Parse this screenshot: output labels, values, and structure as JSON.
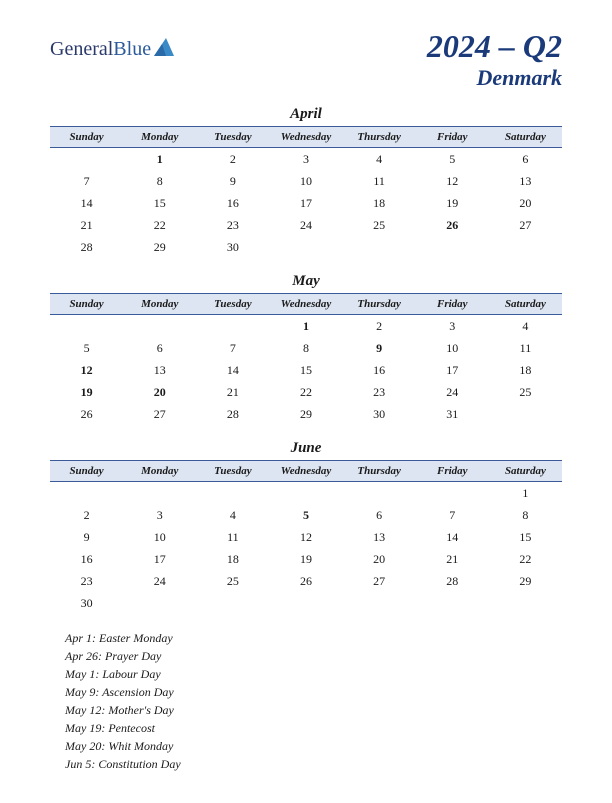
{
  "logo": {
    "general": "General",
    "blue": "Blue"
  },
  "title": {
    "main": "2024 – Q2",
    "country": "Denmark"
  },
  "days": [
    "Sunday",
    "Monday",
    "Tuesday",
    "Wednesday",
    "Thursday",
    "Friday",
    "Saturday"
  ],
  "colors": {
    "title": "#1a3a7a",
    "header_bg": "#dde5f2",
    "header_border": "#3a5a9a",
    "holiday": "#c02020",
    "text": "#1a1a1a",
    "logo_shape": "#3a8ac8"
  },
  "months": [
    {
      "name": "April",
      "weeks": [
        [
          {
            "d": ""
          },
          {
            "d": "1",
            "h": true
          },
          {
            "d": "2"
          },
          {
            "d": "3"
          },
          {
            "d": "4"
          },
          {
            "d": "5"
          },
          {
            "d": "6"
          }
        ],
        [
          {
            "d": "7"
          },
          {
            "d": "8"
          },
          {
            "d": "9"
          },
          {
            "d": "10"
          },
          {
            "d": "11"
          },
          {
            "d": "12"
          },
          {
            "d": "13"
          }
        ],
        [
          {
            "d": "14"
          },
          {
            "d": "15"
          },
          {
            "d": "16"
          },
          {
            "d": "17"
          },
          {
            "d": "18"
          },
          {
            "d": "19"
          },
          {
            "d": "20"
          }
        ],
        [
          {
            "d": "21"
          },
          {
            "d": "22"
          },
          {
            "d": "23"
          },
          {
            "d": "24"
          },
          {
            "d": "25"
          },
          {
            "d": "26",
            "h": true
          },
          {
            "d": "27"
          }
        ],
        [
          {
            "d": "28"
          },
          {
            "d": "29"
          },
          {
            "d": "30"
          },
          {
            "d": ""
          },
          {
            "d": ""
          },
          {
            "d": ""
          },
          {
            "d": ""
          }
        ]
      ]
    },
    {
      "name": "May",
      "weeks": [
        [
          {
            "d": ""
          },
          {
            "d": ""
          },
          {
            "d": ""
          },
          {
            "d": "1",
            "h": true
          },
          {
            "d": "2"
          },
          {
            "d": "3"
          },
          {
            "d": "4"
          }
        ],
        [
          {
            "d": "5"
          },
          {
            "d": "6"
          },
          {
            "d": "7"
          },
          {
            "d": "8"
          },
          {
            "d": "9",
            "h": true
          },
          {
            "d": "10"
          },
          {
            "d": "11"
          }
        ],
        [
          {
            "d": "12",
            "h": true
          },
          {
            "d": "13"
          },
          {
            "d": "14"
          },
          {
            "d": "15"
          },
          {
            "d": "16"
          },
          {
            "d": "17"
          },
          {
            "d": "18"
          }
        ],
        [
          {
            "d": "19",
            "h": true
          },
          {
            "d": "20",
            "h": true
          },
          {
            "d": "21"
          },
          {
            "d": "22"
          },
          {
            "d": "23"
          },
          {
            "d": "24"
          },
          {
            "d": "25"
          }
        ],
        [
          {
            "d": "26"
          },
          {
            "d": "27"
          },
          {
            "d": "28"
          },
          {
            "d": "29"
          },
          {
            "d": "30"
          },
          {
            "d": "31"
          },
          {
            "d": ""
          }
        ]
      ]
    },
    {
      "name": "June",
      "weeks": [
        [
          {
            "d": ""
          },
          {
            "d": ""
          },
          {
            "d": ""
          },
          {
            "d": ""
          },
          {
            "d": ""
          },
          {
            "d": ""
          },
          {
            "d": "1"
          }
        ],
        [
          {
            "d": "2"
          },
          {
            "d": "3"
          },
          {
            "d": "4"
          },
          {
            "d": "5",
            "h": true
          },
          {
            "d": "6"
          },
          {
            "d": "7"
          },
          {
            "d": "8"
          }
        ],
        [
          {
            "d": "9"
          },
          {
            "d": "10"
          },
          {
            "d": "11"
          },
          {
            "d": "12"
          },
          {
            "d": "13"
          },
          {
            "d": "14"
          },
          {
            "d": "15"
          }
        ],
        [
          {
            "d": "16"
          },
          {
            "d": "17"
          },
          {
            "d": "18"
          },
          {
            "d": "19"
          },
          {
            "d": "20"
          },
          {
            "d": "21"
          },
          {
            "d": "22"
          }
        ],
        [
          {
            "d": "23"
          },
          {
            "d": "24"
          },
          {
            "d": "25"
          },
          {
            "d": "26"
          },
          {
            "d": "27"
          },
          {
            "d": "28"
          },
          {
            "d": "29"
          }
        ],
        [
          {
            "d": "30"
          },
          {
            "d": ""
          },
          {
            "d": ""
          },
          {
            "d": ""
          },
          {
            "d": ""
          },
          {
            "d": ""
          },
          {
            "d": ""
          }
        ]
      ]
    }
  ],
  "holidays_list": [
    "Apr 1: Easter Monday",
    "Apr 26: Prayer Day",
    "May 1: Labour Day",
    "May 9: Ascension Day",
    "May 12: Mother's Day",
    "May 19: Pentecost",
    "May 20: Whit Monday",
    "Jun 5: Constitution Day"
  ]
}
